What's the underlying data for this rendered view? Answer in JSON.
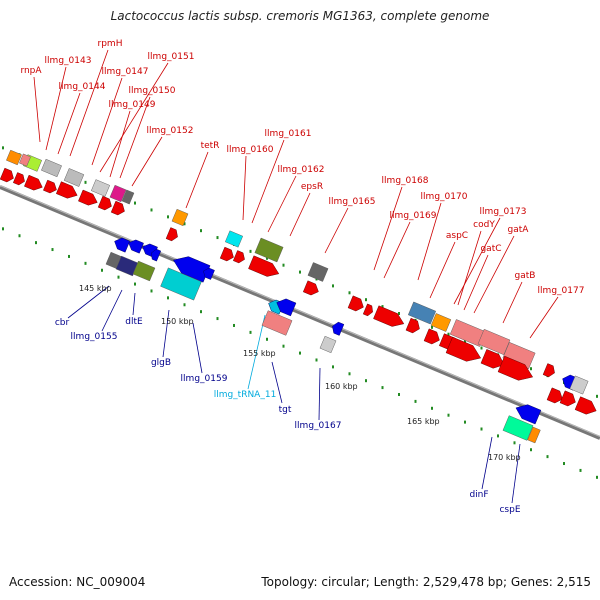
{
  "title": "Lactococcus lactis subsp. cremoris MG1363, complete genome",
  "footer": {
    "accession": "Accession: NC_009004",
    "topology": "Topology: circular; Length: 2,529,478 bp; Genes: 2,515"
  },
  "colors": {
    "forward_label": "#cc0000",
    "reverse_label": "#00008b",
    "trna_label": "#00aadd",
    "forward_gene": "#ee0000",
    "reverse_gene": "#0000ee",
    "backbone": "#888888",
    "tick": "#228b22"
  },
  "scale_labels": [
    "145 kbp",
    "150 kbp",
    "155 kbp",
    "160 kbp",
    "165 kbp",
    "170 kbp"
  ],
  "forward_labels": [
    "rnpA",
    "llmg_0143",
    "rpmH",
    "llmg_0144",
    "llmg_0147",
    "llmg_0151",
    "llmg_0149",
    "llmg_0150",
    "llmg_0152",
    "tetR",
    "llmg_0160",
    "llmg_0161",
    "llmg_0162",
    "epsR",
    "llmg_0165",
    "llmg_0168",
    "llmg_0169",
    "llmg_0170",
    "aspC",
    "llmg_0173",
    "codY",
    "gatC",
    "gatA",
    "gatB",
    "llmg_0177"
  ],
  "reverse_labels": [
    "cbr",
    "llmg_0155",
    "dltE",
    "glgB",
    "llmg_0159",
    "tgt",
    "llmg_0167",
    "dinF",
    "cspE"
  ],
  "trna_labels": [
    "llmg_tRNA_11"
  ]
}
